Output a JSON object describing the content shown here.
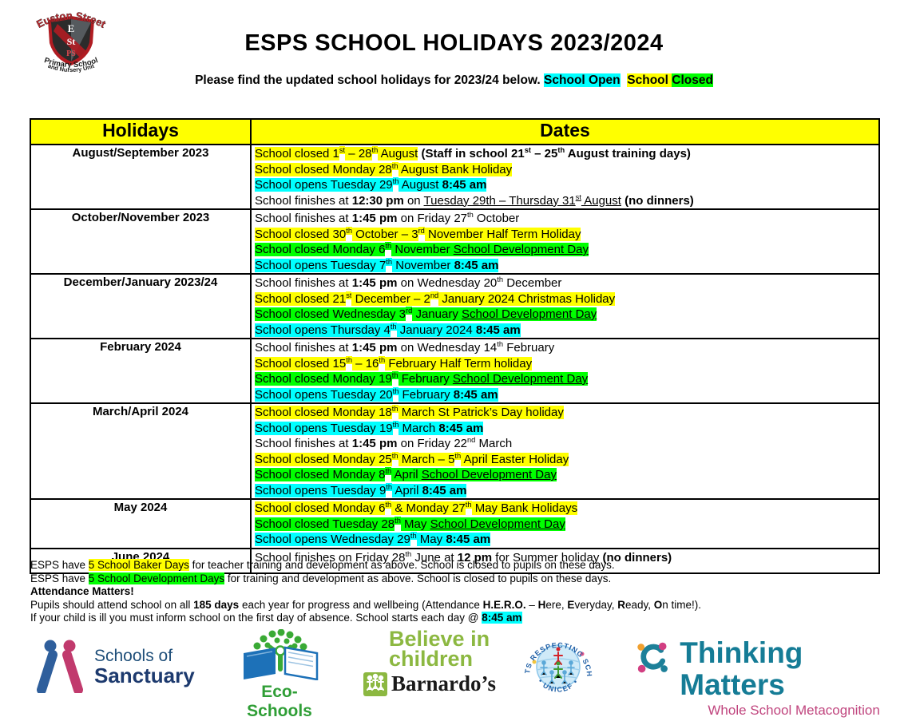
{
  "colors": {
    "highlight_open": "#00FFFF",
    "highlight_closed": "#FFFF00",
    "highlight_development": "#00FF00",
    "table_header_bg": "#FFFF00"
  },
  "header": {
    "title": "ESPS SCHOOL HOLIDAYS 2023/2024",
    "subtitle_segments": [
      {
        "t": "Please find the updated school holidays for 2023/24 below. ",
        "b": true
      },
      {
        "t": "School Open",
        "b": true,
        "hl": "cyan"
      },
      {
        "t": "  ",
        "b": true
      },
      {
        "t": "School ",
        "b": true,
        "hl": "yellow"
      },
      {
        "t": "Closed",
        "b": true,
        "hl": "green"
      }
    ]
  },
  "school_logo": {
    "arc_top": "Euston Street",
    "shield_line1": "E",
    "shield_line2": "St",
    "shield_line3": "PS",
    "arc_bottom1": "Primary School",
    "arc_bottom2": "and Nursery Unit"
  },
  "table": {
    "headers": [
      "Holidays",
      "Dates"
    ],
    "rows": [
      {
        "holiday": "August/September 2023",
        "lines": [
          [
            {
              "t": "School closed 1",
              "hl": "yellow"
            },
            {
              "t": "st",
              "hl": "yellow",
              "sup": true
            },
            {
              "t": " – 28",
              "hl": "yellow"
            },
            {
              "t": "th",
              "hl": "yellow",
              "sup": true
            },
            {
              "t": " August",
              "hl": "yellow"
            },
            {
              "t": " (Staff in school 21",
              "b": true
            },
            {
              "t": "st",
              "b": true,
              "sup": true
            },
            {
              "t": " – 25",
              "b": true
            },
            {
              "t": "th",
              "b": true,
              "sup": true
            },
            {
              "t": " August training days)",
              "b": true
            }
          ],
          [
            {
              "t": "School closed Monday 28",
              "hl": "yellow"
            },
            {
              "t": "th",
              "hl": "yellow",
              "sup": true
            },
            {
              "t": " August Bank Holiday",
              "hl": "yellow"
            }
          ],
          [
            {
              "t": "School opens Tuesday 29",
              "hl": "cyan"
            },
            {
              "t": "th",
              "hl": "cyan",
              "sup": true
            },
            {
              "t": " August ",
              "hl": "cyan"
            },
            {
              "t": "8:45 am",
              "hl": "cyan",
              "b": true
            }
          ],
          [
            {
              "t": "School finishes at "
            },
            {
              "t": "12:30 pm",
              "b": true
            },
            {
              "t": " on "
            },
            {
              "t": "Tuesday 29th – Thursday 31",
              "u": true
            },
            {
              "t": "st",
              "u": true,
              "sup": true
            },
            {
              "t": " August",
              "u": true
            },
            {
              "t": " "
            },
            {
              "t": "(no dinners)",
              "b": true
            }
          ]
        ]
      },
      {
        "holiday": "October/November 2023",
        "lines": [
          [
            {
              "t": "School finishes at "
            },
            {
              "t": "1:45 pm",
              "b": true
            },
            {
              "t": " on Friday 27"
            },
            {
              "t": "th",
              "sup": true
            },
            {
              "t": " October"
            }
          ],
          [
            {
              "t": "School closed 30",
              "hl": "yellow"
            },
            {
              "t": "th",
              "hl": "yellow",
              "sup": true
            },
            {
              "t": " October – 3",
              "hl": "yellow"
            },
            {
              "t": "rd",
              "hl": "yellow",
              "sup": true
            },
            {
              "t": " November Half Term Holiday",
              "hl": "yellow"
            }
          ],
          [
            {
              "t": "School closed Monday 6",
              "hl": "green"
            },
            {
              "t": "th",
              "hl": "green",
              "sup": true
            },
            {
              "t": " November ",
              "hl": "green"
            },
            {
              "t": "School Development Day",
              "hl": "green",
              "u": true
            }
          ],
          [
            {
              "t": "School opens Tuesday 7",
              "hl": "cyan"
            },
            {
              "t": "th",
              "hl": "cyan",
              "sup": true
            },
            {
              "t": " November ",
              "hl": "cyan"
            },
            {
              "t": "8:45 am",
              "hl": "cyan",
              "b": true
            }
          ]
        ]
      },
      {
        "holiday": "December/January 2023/24",
        "lines": [
          [
            {
              "t": "School finishes at "
            },
            {
              "t": "1:45 pm",
              "b": true
            },
            {
              "t": " on Wednesday 20"
            },
            {
              "t": "th",
              "sup": true
            },
            {
              "t": " December"
            }
          ],
          [
            {
              "t": "School closed 21",
              "hl": "yellow"
            },
            {
              "t": "st",
              "hl": "yellow",
              "sup": true
            },
            {
              "t": " December – 2",
              "hl": "yellow"
            },
            {
              "t": "nd",
              "hl": "yellow",
              "sup": true
            },
            {
              "t": " January 2024 Christmas Holiday",
              "hl": "yellow"
            }
          ],
          [
            {
              "t": "School closed Wednesday 3",
              "hl": "green"
            },
            {
              "t": "rd",
              "hl": "green",
              "sup": true
            },
            {
              "t": " January ",
              "hl": "green"
            },
            {
              "t": "School Development Day",
              "hl": "green",
              "u": true
            }
          ],
          [
            {
              "t": "School opens Thursday 4",
              "hl": "cyan"
            },
            {
              "t": "th",
              "hl": "cyan",
              "sup": true
            },
            {
              "t": " January 2024 ",
              "hl": "cyan"
            },
            {
              "t": "8:45 am",
              "hl": "cyan",
              "b": true
            }
          ]
        ]
      },
      {
        "holiday": "February 2024",
        "lines": [
          [
            {
              "t": "School finishes at "
            },
            {
              "t": "1:45 pm",
              "b": true
            },
            {
              "t": " on Wednesday 14"
            },
            {
              "t": "th",
              "sup": true
            },
            {
              "t": " February"
            }
          ],
          [
            {
              "t": "School closed 15",
              "hl": "yellow"
            },
            {
              "t": "th",
              "hl": "yellow",
              "sup": true
            },
            {
              "t": " – 16",
              "hl": "yellow"
            },
            {
              "t": "th",
              "hl": "yellow",
              "sup": true
            },
            {
              "t": " February Half Term holiday",
              "hl": "yellow"
            }
          ],
          [
            {
              "t": "School closed Monday 19",
              "hl": "green"
            },
            {
              "t": "th",
              "hl": "green",
              "sup": true
            },
            {
              "t": " February ",
              "hl": "green"
            },
            {
              "t": "School Development Day",
              "hl": "green",
              "u": true
            }
          ],
          [
            {
              "t": "School opens Tuesday 20",
              "hl": "cyan"
            },
            {
              "t": "th",
              "hl": "cyan",
              "sup": true
            },
            {
              "t": " February ",
              "hl": "cyan"
            },
            {
              "t": "8:45 am",
              "hl": "cyan",
              "b": true
            }
          ]
        ]
      },
      {
        "holiday": "March/April  2024",
        "lines": [
          [
            {
              "t": "School closed Monday 18",
              "hl": "yellow"
            },
            {
              "t": "th",
              "hl": "yellow",
              "sup": true
            },
            {
              "t": " March St Patrick’s Day holiday",
              "hl": "yellow"
            }
          ],
          [
            {
              "t": "School opens Tuesday 19",
              "hl": "cyan"
            },
            {
              "t": "th",
              "hl": "cyan",
              "sup": true
            },
            {
              "t": " March ",
              "hl": "cyan"
            },
            {
              "t": "8:45 am",
              "hl": "cyan",
              "b": true
            }
          ],
          [
            {
              "t": "School finishes at "
            },
            {
              "t": "1:45 pm",
              "b": true
            },
            {
              "t": " on Friday 22"
            },
            {
              "t": "nd",
              "sup": true
            },
            {
              "t": " March"
            }
          ],
          [
            {
              "t": "School closed Monday 25",
              "hl": "yellow"
            },
            {
              "t": "th",
              "hl": "yellow",
              "sup": true
            },
            {
              "t": " March – 5",
              "hl": "yellow"
            },
            {
              "t": "th",
              "hl": "yellow",
              "sup": true
            },
            {
              "t": " April Easter Holiday",
              "hl": "yellow"
            }
          ],
          [
            {
              "t": "School closed Monday 8",
              "hl": "green"
            },
            {
              "t": "th",
              "hl": "green",
              "sup": true
            },
            {
              "t": " April ",
              "hl": "green"
            },
            {
              "t": "School Development Day",
              "hl": "green",
              "u": true
            }
          ],
          [
            {
              "t": "School opens Tuesday 9",
              "hl": "cyan"
            },
            {
              "t": "th",
              "hl": "cyan",
              "sup": true
            },
            {
              "t": " April ",
              "hl": "cyan"
            },
            {
              "t": "8:45 am",
              "hl": "cyan",
              "b": true
            }
          ]
        ]
      },
      {
        "holiday": "May 2024",
        "lines": [
          [
            {
              "t": "School closed Monday 6",
              "hl": "yellow"
            },
            {
              "t": "th",
              "hl": "yellow",
              "sup": true
            },
            {
              "t": " & Monday 27",
              "hl": "yellow"
            },
            {
              "t": "th",
              "hl": "yellow",
              "sup": true
            },
            {
              "t": " May Bank Holidays",
              "hl": "yellow"
            }
          ],
          [
            {
              "t": "School closed Tuesday 28",
              "hl": "green"
            },
            {
              "t": "th",
              "hl": "green",
              "sup": true
            },
            {
              "t": " May ",
              "hl": "green"
            },
            {
              "t": "School Development Day",
              "hl": "green",
              "u": true
            }
          ],
          [
            {
              "t": "School opens Wednesday 29",
              "hl": "cyan"
            },
            {
              "t": "th",
              "hl": "cyan",
              "sup": true
            },
            {
              "t": " May ",
              "hl": "cyan"
            },
            {
              "t": "8:45 am",
              "hl": "cyan",
              "b": true
            }
          ]
        ]
      },
      {
        "holiday": "June 2024",
        "lines": [
          [
            {
              "t": "School finishes on Friday 28"
            },
            {
              "t": "th",
              "sup": true
            },
            {
              "t": " June at "
            },
            {
              "t": "12 pm",
              "b": true
            },
            {
              "t": " for Summer holiday "
            },
            {
              "t": "(no dinners)",
              "b": true
            }
          ]
        ]
      }
    ]
  },
  "footer": {
    "lines": [
      [
        {
          "t": "ESPS have "
        },
        {
          "t": "5 School Baker Days",
          "hl": "yellow"
        },
        {
          "t": " for teacher training and development as above. School is closed to pupils on these days."
        }
      ],
      [
        {
          "t": "ESPS have "
        },
        {
          "t": "5 School Development Days",
          "hl": "green"
        },
        {
          "t": " for training and development as above. School is closed to pupils on these days."
        }
      ],
      [
        {
          "t": "Attendance Matters!",
          "b": true
        }
      ],
      [
        {
          "t": "Pupils should attend school on all "
        },
        {
          "t": "185 days",
          "b": true
        },
        {
          "t": " each year for progress and wellbeing (Attendance "
        },
        {
          "t": "H.E.R.O.",
          "b": true
        },
        {
          "t": " – "
        },
        {
          "t": "H",
          "b": true
        },
        {
          "t": "ere, "
        },
        {
          "t": "E",
          "b": true
        },
        {
          "t": "veryday, "
        },
        {
          "t": "R",
          "b": true
        },
        {
          "t": "eady, "
        },
        {
          "t": "O",
          "b": true
        },
        {
          "t": "n time!)."
        }
      ],
      [
        {
          "t": "If your child is ill you must inform school on the first day of absence. School starts each day @ "
        },
        {
          "t": "8:45 am",
          "hl": "cyan",
          "b": true
        }
      ]
    ]
  },
  "partners": {
    "sanctuary": {
      "line1": "Schools of",
      "line2": "Sanctuary"
    },
    "ecoschools": {
      "label": "Eco-Schools"
    },
    "barnardos": {
      "line1": "Believe in",
      "line2": "children",
      "name": "Barnardo’s"
    },
    "unicef": {
      "arc_text": "RIGHTS RESPECTING SCHOOL",
      "bottom_text": "• UNICEF •"
    },
    "thinking": {
      "title": "Thinking Matters",
      "subtitle": "Whole School Metacognition"
    }
  }
}
